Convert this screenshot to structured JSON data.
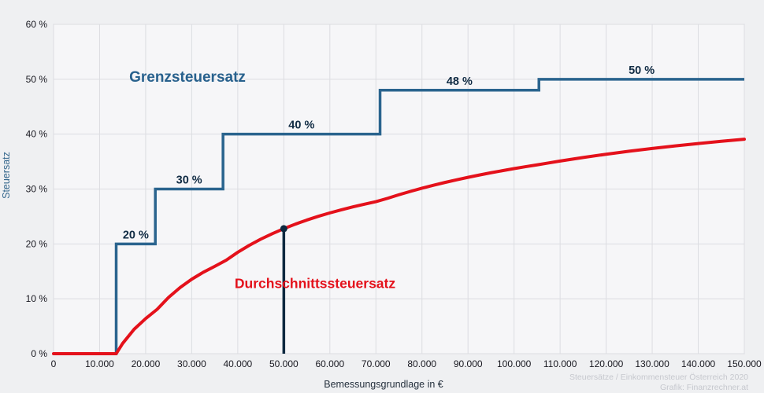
{
  "chart_data": {
    "type": "line",
    "title": "",
    "x_axis": {
      "label": "Bemessungsgrundlage in €",
      "min": 0,
      "max": 150000,
      "grid": true,
      "ticks": [
        {
          "value": 0,
          "label": "0"
        },
        {
          "value": 10000,
          "label": "10.000"
        },
        {
          "value": 20000,
          "label": "20.000"
        },
        {
          "value": 30000,
          "label": "30.000"
        },
        {
          "value": 40000,
          "label": "40.000"
        },
        {
          "value": 50000,
          "label": "50.000"
        },
        {
          "value": 60000,
          "label": "60.000"
        },
        {
          "value": 70000,
          "label": "70.000"
        },
        {
          "value": 80000,
          "label": "80.000"
        },
        {
          "value": 90000,
          "label": "90.000"
        },
        {
          "value": 100000,
          "label": "100.000"
        },
        {
          "value": 110000,
          "label": "110.000"
        },
        {
          "value": 120000,
          "label": "120.000"
        },
        {
          "value": 130000,
          "label": "130.000"
        },
        {
          "value": 140000,
          "label": "140.000"
        },
        {
          "value": 150000,
          "label": "150.000"
        }
      ]
    },
    "y_axis": {
      "label": "Steuersatz",
      "min": 0,
      "max": 60,
      "grid": true,
      "ticks": [
        {
          "value": 0,
          "label": "0 %"
        },
        {
          "value": 10,
          "label": "10 %"
        },
        {
          "value": 20,
          "label": "20 %"
        },
        {
          "value": 30,
          "label": "30 %"
        },
        {
          "value": 40,
          "label": "40 %"
        },
        {
          "value": 50,
          "label": "50 %"
        },
        {
          "value": 60,
          "label": "60 %"
        }
      ]
    },
    "series": [
      {
        "name": "Grenzsteuersatz",
        "type": "step",
        "color": "#2a648e",
        "segments": [
          {
            "from": 0,
            "to": 13600,
            "rate": 0,
            "label": ""
          },
          {
            "from": 13600,
            "to": 22100,
            "rate": 20,
            "label": "20 %"
          },
          {
            "from": 22100,
            "to": 36800,
            "rate": 30,
            "label": "30 %"
          },
          {
            "from": 36800,
            "to": 70900,
            "rate": 40,
            "label": "40 %"
          },
          {
            "from": 70900,
            "to": 105400,
            "rate": 48,
            "label": "48 %"
          },
          {
            "from": 105400,
            "to": 150000,
            "rate": 50,
            "label": "50 %"
          }
        ]
      },
      {
        "name": "Durchschnittssteuersatz",
        "type": "curve",
        "color": "#e4111b",
        "points": [
          [
            0,
            0
          ],
          [
            13600,
            0
          ],
          [
            15000,
            1.87
          ],
          [
            17500,
            4.46
          ],
          [
            20000,
            6.4
          ],
          [
            22500,
            8.09
          ],
          [
            25000,
            10.28
          ],
          [
            27500,
            12.07
          ],
          [
            30000,
            13.57
          ],
          [
            32500,
            14.83
          ],
          [
            35000,
            15.91
          ],
          [
            37500,
            17.04
          ],
          [
            40000,
            18.48
          ],
          [
            42500,
            19.74
          ],
          [
            45000,
            20.87
          ],
          [
            47500,
            21.87
          ],
          [
            50000,
            22.78
          ],
          [
            52500,
            23.6
          ],
          [
            55000,
            24.35
          ],
          [
            57500,
            25.03
          ],
          [
            60000,
            25.65
          ],
          [
            62500,
            26.22
          ],
          [
            65000,
            26.75
          ],
          [
            67500,
            27.24
          ],
          [
            70000,
            27.7
          ],
          [
            72500,
            28.3
          ],
          [
            75000,
            28.96
          ],
          [
            77500,
            29.57
          ],
          [
            80000,
            30.15
          ],
          [
            82500,
            30.69
          ],
          [
            85000,
            31.2
          ],
          [
            87500,
            31.68
          ],
          [
            90000,
            32.13
          ],
          [
            92500,
            32.56
          ],
          [
            95000,
            32.97
          ],
          [
            97500,
            33.35
          ],
          [
            100000,
            33.72
          ],
          [
            102500,
            34.07
          ],
          [
            105000,
            34.4
          ],
          [
            107500,
            34.75
          ],
          [
            110000,
            35.1
          ],
          [
            115000,
            35.75
          ],
          [
            120000,
            36.34
          ],
          [
            125000,
            36.89
          ],
          [
            130000,
            37.39
          ],
          [
            135000,
            37.86
          ],
          [
            140000,
            38.29
          ],
          [
            145000,
            38.7
          ],
          [
            150000,
            39.07
          ]
        ]
      }
    ],
    "marker": {
      "x": 50000,
      "y": 22.78,
      "color": "#0d2940"
    },
    "annotations": {
      "marginal_label": {
        "text": "Grenzsteuersatz"
      },
      "average_label": {
        "text": "Durchschnittssteuersatz"
      }
    },
    "watermark": {
      "line1": "Steuersätze / Einkommensteuer Österreich 2020",
      "line2": "Grafik: Finanzrechner.at"
    },
    "colors": {
      "page_background": "#eff0f2",
      "plot_background": "#f6f6f8",
      "gridline": "#dcdde1",
      "plot_border": "#d3d4d8",
      "marginal_line": "#2a648e",
      "average_line": "#e4111b",
      "step_label_text": "#112c44",
      "tick_text": "#17171f",
      "marker": "#0d2940"
    },
    "legend_position": "none"
  }
}
